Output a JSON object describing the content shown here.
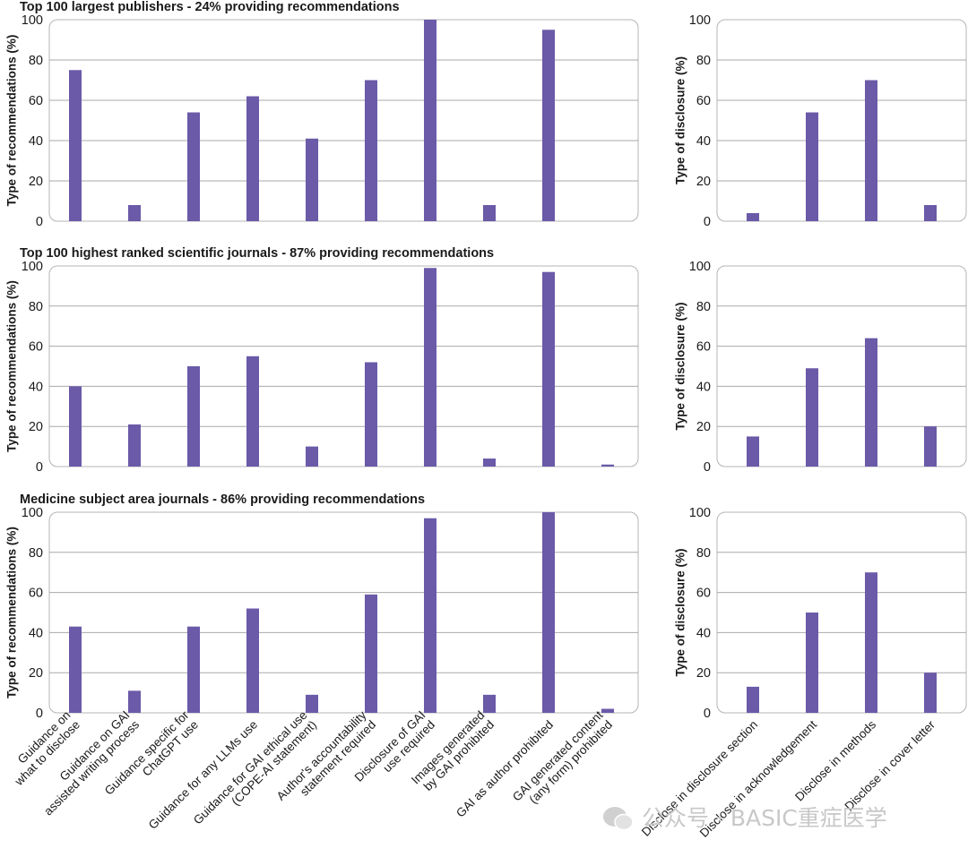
{
  "chart_data": [
    {
      "type": "bar",
      "title": "Top 100 largest publishers - 24% providing recommendations",
      "ylabel": "Type of recommendations (%)",
      "ylim": [
        0,
        100
      ],
      "yticks": [
        0,
        20,
        40,
        60,
        80,
        100
      ],
      "categories": [
        "Guidance on what to disclose",
        "Guidance on GAI assisted writing process",
        "Guidance specific for ChatGPT use",
        "Guidance for any LLMs use",
        "Guidance for GAI ethical use (COPE-AI statement)",
        "Author's accountability statement required",
        "Disclosure of GAI use required",
        "Images generated by GAI prohibited",
        "GAI as author prohibited",
        "GAI generated content (any form) prohibited"
      ],
      "values": [
        75,
        8,
        54,
        62,
        41,
        70,
        100,
        8,
        95,
        0
      ]
    },
    {
      "type": "bar",
      "title": "",
      "ylabel": "Type of disclosure (%)",
      "ylim": [
        0,
        100
      ],
      "yticks": [
        0,
        20,
        40,
        60,
        80,
        100
      ],
      "categories": [
        "Disclose in disclosure section",
        "Disclose in acknowledgement",
        "Disclose in methods",
        "Disclose in cover letter"
      ],
      "values": [
        4,
        54,
        70,
        8
      ]
    },
    {
      "type": "bar",
      "title": "Top 100 highest ranked scientific journals - 87% providing recommendations",
      "ylabel": "Type of recommendations (%)",
      "ylim": [
        0,
        100
      ],
      "yticks": [
        0,
        20,
        40,
        60,
        80,
        100
      ],
      "categories": [
        "Guidance on what to disclose",
        "Guidance on GAI assisted writing process",
        "Guidance specific for ChatGPT use",
        "Guidance for any LLMs use",
        "Guidance for GAI ethical use (COPE-AI statement)",
        "Author's accountability statement required",
        "Disclosure of GAI use required",
        "Images generated by GAI prohibited",
        "GAI as author prohibited",
        "GAI generated content (any form) prohibited"
      ],
      "values": [
        40,
        21,
        50,
        55,
        10,
        52,
        99,
        4,
        97,
        1
      ]
    },
    {
      "type": "bar",
      "title": "",
      "ylabel": "Type of disclosure (%)",
      "ylim": [
        0,
        100
      ],
      "yticks": [
        0,
        20,
        40,
        60,
        80,
        100
      ],
      "categories": [
        "Disclose in disclosure section",
        "Disclose in acknowledgement",
        "Disclose in methods",
        "Disclose in cover letter"
      ],
      "values": [
        15,
        49,
        64,
        20
      ]
    },
    {
      "type": "bar",
      "title": "Medicine subject area journals - 86% providing recommendations",
      "ylabel": "Type of recommendations (%)",
      "ylim": [
        0,
        100
      ],
      "yticks": [
        0,
        20,
        40,
        60,
        80,
        100
      ],
      "categories": [
        "Guidance on what to disclose",
        "Guidance on GAI assisted writing process",
        "Guidance specific for ChatGPT use",
        "Guidance for any LLMs use",
        "Guidance for GAI ethical use (COPE-AI statement)",
        "Author's accountability statement required",
        "Disclosure of GAI use required",
        "Images generated by GAI prohibited",
        "GAI as author prohibited",
        "GAI generated content (any form) prohibited"
      ],
      "values": [
        43,
        11,
        43,
        52,
        9,
        59,
        97,
        9,
        100,
        2
      ]
    },
    {
      "type": "bar",
      "title": "",
      "ylabel": "Type of disclosure (%)",
      "ylim": [
        0,
        100
      ],
      "yticks": [
        0,
        20,
        40,
        60,
        80,
        100
      ],
      "categories": [
        "Disclose in disclosure section",
        "Disclose in acknowledgement",
        "Disclose in methods",
        "Disclose in cover letter"
      ],
      "values": [
        13,
        50,
        70,
        20
      ]
    }
  ],
  "left_xlabels": [
    [
      "Guidance on",
      "what to disclose"
    ],
    [
      "Guidance on GAI",
      "assisted writing process"
    ],
    [
      "Guidance specific for",
      "ChatGPT use"
    ],
    [
      "Guidance for any LLMs use"
    ],
    [
      "Guidance for GAI ethical use",
      "(COPE-AI statement)"
    ],
    [
      "Author's accountability",
      "statement required"
    ],
    [
      "Disclosure of GAI",
      "use required"
    ],
    [
      "Images generated",
      "by GAI prohibited"
    ],
    [
      "GAI as author prohibited"
    ],
    [
      "GAI generated content",
      "(any form) prohibited"
    ]
  ],
  "right_xlabels": [
    [
      "Disclose in disclosure section"
    ],
    [
      "Disclose in acknowledgement"
    ],
    [
      "Disclose in methods"
    ],
    [
      "Disclose in cover letter"
    ]
  ],
  "style": {
    "bar_color": "#6a5aa8",
    "grid_color": "#a9a9a9",
    "frame_color": "#b4b4b4"
  },
  "watermark": "公众号 · BASIC重症医学"
}
